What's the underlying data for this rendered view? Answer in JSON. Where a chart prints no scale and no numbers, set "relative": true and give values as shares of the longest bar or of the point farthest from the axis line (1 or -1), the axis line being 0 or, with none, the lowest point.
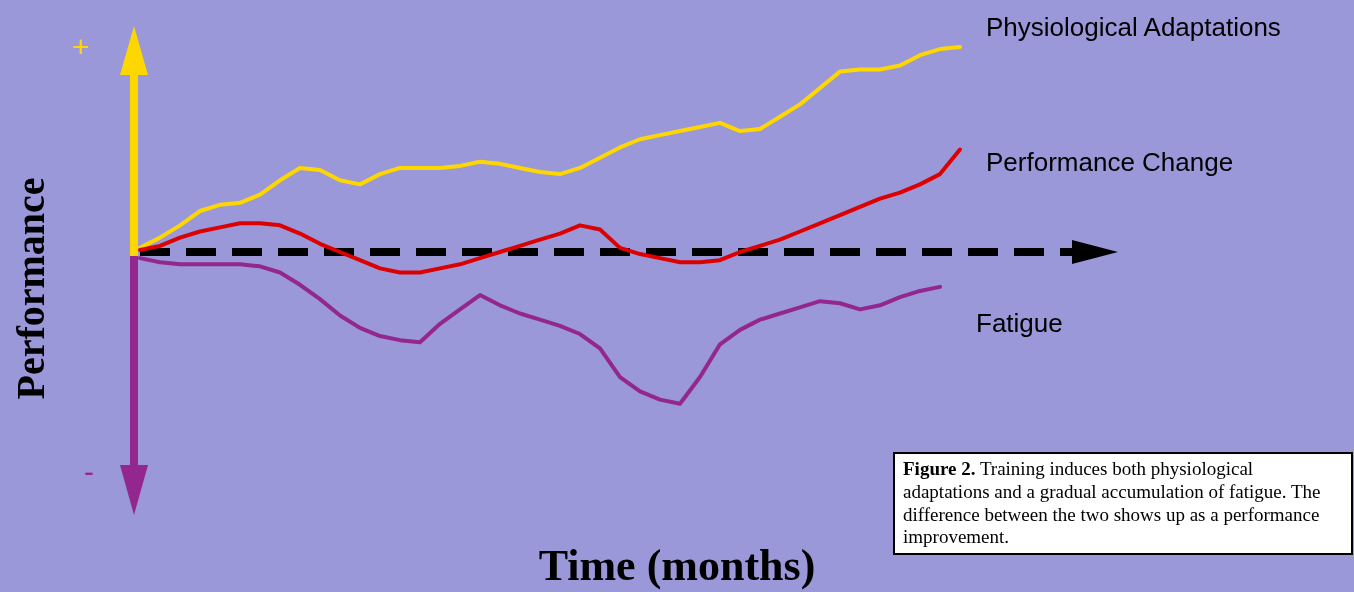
{
  "chart_data": {
    "type": "line",
    "relative": true,
    "xlabel": "Time (months)",
    "ylabel": "Performance",
    "marker": "none",
    "line_style": "solid",
    "categories": [
      null,
      null,
      null,
      null,
      null,
      null,
      null,
      null,
      null,
      null,
      null,
      null,
      null,
      null,
      null,
      null,
      null,
      null,
      null,
      null,
      null,
      null,
      null,
      null,
      null,
      null,
      null,
      null,
      null,
      null,
      null,
      null,
      null,
      null,
      null,
      null,
      null,
      null,
      null,
      null,
      null,
      null
    ],
    "series": [
      {
        "name": "Physiological Adaptations",
        "color": "#ffd700",
        "values": [
          0.02,
          0.07,
          0.13,
          0.2,
          0.23,
          0.24,
          0.28,
          0.35,
          0.41,
          0.4,
          0.35,
          0.33,
          0.38,
          0.41,
          0.41,
          0.41,
          0.42,
          0.44,
          0.43,
          0.41,
          0.39,
          0.38,
          0.41,
          0.46,
          0.51,
          0.55,
          0.57,
          0.59,
          0.61,
          0.63,
          0.59,
          0.6,
          0.66,
          0.72,
          0.8,
          0.88,
          0.89,
          0.89,
          0.91,
          0.96,
          0.99,
          1
        ]
      },
      {
        "name": "Performance Change",
        "color": "#dd0000",
        "values": [
          0.01,
          0.03,
          0.07,
          0.1,
          0.12,
          0.14,
          0.14,
          0.13,
          0.09,
          0.04,
          0,
          -0.04,
          -0.08,
          -0.1,
          -0.1,
          -0.08,
          -0.06,
          -0.03,
          0,
          0.03,
          0.06,
          0.09,
          0.13,
          0.11,
          0.02,
          -0.01,
          -0.03,
          -0.05,
          -0.05,
          -0.04,
          0,
          0.03,
          0.06,
          0.1,
          0.14,
          0.18,
          0.22,
          0.26,
          0.29,
          0.33,
          0.38,
          0.5
        ]
      },
      {
        "name": "Fatigue",
        "color": "#93278f",
        "values": [
          -0.03,
          -0.05,
          -0.06,
          -0.06,
          -0.06,
          -0.06,
          -0.07,
          -0.1,
          -0.16,
          -0.23,
          -0.31,
          -0.37,
          -0.41,
          -0.43,
          -0.44,
          -0.35,
          -0.28,
          -0.21,
          -0.26,
          -0.3,
          -0.33,
          -0.36,
          -0.4,
          -0.47,
          -0.61,
          -0.68,
          -0.72,
          -0.74,
          -0.61,
          -0.45,
          -0.38,
          -0.33,
          -0.3,
          -0.27,
          -0.24,
          -0.25,
          -0.28,
          -0.26,
          -0.22,
          -0.19,
          -0.17,
          null
        ]
      }
    ],
    "ref_lines": [
      {
        "axis": "y",
        "value": 0,
        "color": "#000000",
        "line_style": "dashed"
      }
    ],
    "annotations": [
      "+",
      "-",
      "Figure 2. Training induces both physiological adaptations and a gradual accumulation of fatigue. The difference between the two shows up as a performance improvement."
    ]
  }
}
